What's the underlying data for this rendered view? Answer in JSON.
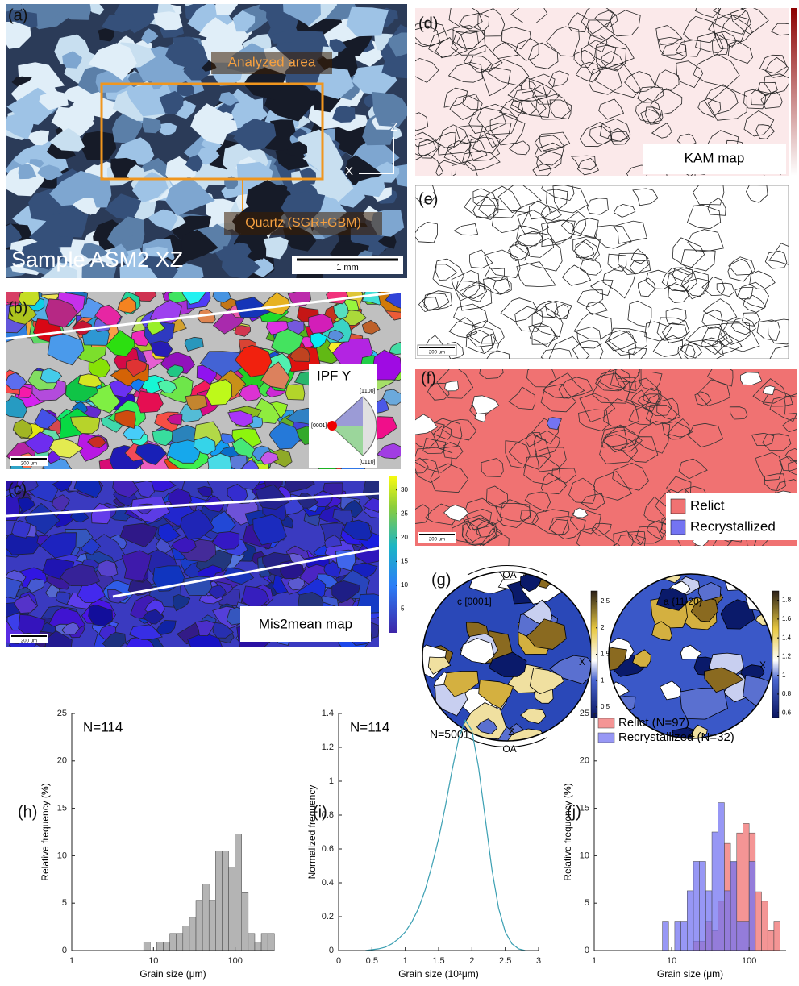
{
  "panels": {
    "a": {
      "label": "(a)",
      "analyzed_area": "Analyzed area",
      "mineral": "Quartz (SGR+GBM)",
      "sample": "Sample ASM2 XZ",
      "scale_bar": "1 mm",
      "axis_z": "Z",
      "axis_x": "X"
    },
    "b": {
      "label": "(b)",
      "legend_title": "IPF Y",
      "pole_top": "[1̄100]",
      "pole_left": "[0001]",
      "pole_bottom": "[01̄10]",
      "scale_bar": "200 μm"
    },
    "c": {
      "label": "(c)",
      "map_name": "Mis2mean map",
      "scale_bar": "200 μm",
      "colorbar": {
        "lim": [
          0,
          33
        ],
        "ticks": [
          5,
          10,
          15,
          20,
          25,
          30
        ]
      }
    },
    "d": {
      "label": "(d)",
      "map_name": "KAM map"
    },
    "e": {
      "label": "(e)",
      "scale_bar": "200 μm"
    },
    "f": {
      "label": "(f)",
      "scale_bar": "200 μm",
      "legend": [
        {
          "name": "Relict",
          "color": "#f07272"
        },
        {
          "name": "Recrystallized",
          "color": "#7474f2"
        }
      ]
    },
    "g": {
      "label": "(g)",
      "n": "N=5001",
      "c_axis": {
        "title": "c [0001]",
        "top": "OA",
        "bottom": "OA",
        "bottom_axis": "Z",
        "right": "X",
        "colorbar": {
          "lim": [
            0.3,
            2.7
          ],
          "ticks": [
            0.5,
            1,
            1.5,
            2,
            2.5
          ]
        }
      },
      "a_axis": {
        "title": "a {11-20}",
        "right": "X",
        "bottom": "Z",
        "colorbar": {
          "lim": [
            0.55,
            1.9
          ],
          "ticks": [
            0.6,
            0.8,
            1,
            1.2,
            1.4,
            1.6,
            1.8
          ]
        }
      }
    }
  },
  "chart_data": [
    {
      "type": "histogram",
      "panel": "(h)",
      "annotation": "N=114",
      "xlabel": "Grain size (μm)",
      "ylabel": "Relative frequency (%)",
      "xscale": "log",
      "xlim": [
        1,
        300
      ],
      "xticks": [
        1,
        10,
        100
      ],
      "ylim": [
        0,
        25
      ],
      "yticks": [
        0,
        5,
        10,
        15,
        20,
        25
      ],
      "color": "#b4b4b4",
      "bins": [
        7.59,
        9.12,
        10.96,
        13.18,
        15.85,
        19.05,
        22.91,
        27.54,
        33.11,
        39.81,
        47.86,
        57.54,
        69.18,
        83.18,
        100,
        120.2,
        144.5,
        173.8,
        208.9,
        251.2,
        302
      ],
      "values": [
        0.9,
        0,
        0.9,
        0.9,
        1.8,
        1.8,
        2.6,
        3.5,
        5.3,
        7.0,
        5.3,
        10.5,
        10.5,
        8.8,
        12.3,
        6.1,
        1.8,
        0.9,
        1.8,
        1.8
      ]
    },
    {
      "type": "line",
      "panel": "(i)",
      "annotation": "N=114",
      "xlabel": "Grain size (10ˣμm)",
      "ylabel": "Normalized frequency",
      "xlim": [
        0,
        3
      ],
      "xticks": [
        0,
        0.5,
        1,
        1.5,
        2,
        2.5,
        3
      ],
      "ylim": [
        0,
        1.4
      ],
      "yticks": [
        0,
        0.2,
        0.4,
        0.6,
        0.8,
        1,
        1.2,
        1.4
      ],
      "color": "#3a9fb2",
      "x": [
        0.4,
        0.5,
        0.6,
        0.7,
        0.8,
        0.9,
        1.0,
        1.1,
        1.2,
        1.3,
        1.4,
        1.5,
        1.6,
        1.7,
        1.8,
        1.9,
        2.0,
        2.1,
        2.2,
        2.3,
        2.4,
        2.5,
        2.6,
        2.7,
        2.8
      ],
      "values": [
        0,
        0.005,
        0.01,
        0.02,
        0.04,
        0.07,
        0.11,
        0.17,
        0.25,
        0.36,
        0.5,
        0.66,
        0.85,
        1.06,
        1.25,
        1.36,
        1.3,
        1.08,
        0.78,
        0.48,
        0.25,
        0.11,
        0.04,
        0.01,
        0
      ]
    },
    {
      "type": "histogram",
      "panel": "(j)",
      "xlabel": "Grain size (μm)",
      "ylabel": "Relative frequency (%)",
      "xscale": "log",
      "xlim": [
        1,
        300
      ],
      "xticks": [
        1,
        10,
        100
      ],
      "ylim": [
        0,
        25
      ],
      "yticks": [
        0,
        5,
        10,
        15,
        20,
        25
      ],
      "bins": [
        7.59,
        9.12,
        10.96,
        13.18,
        15.85,
        19.05,
        22.91,
        27.54,
        33.11,
        39.81,
        47.86,
        57.54,
        69.18,
        83.18,
        100,
        120.2,
        144.5,
        173.8,
        208.9,
        251.2,
        302
      ],
      "series": [
        {
          "name": "Relict (N=97)",
          "color": "#f07272",
          "values": [
            0,
            0,
            0,
            0,
            0,
            1.0,
            1.0,
            3.1,
            2.1,
            5.2,
            11.3,
            9.3,
            12.4,
            13.4,
            12.4,
            6.2,
            5.2,
            2.1,
            3.1,
            0
          ]
        },
        {
          "name": "Recrystallized (N=32)",
          "color": "#7474f2",
          "values": [
            3.1,
            0,
            3.1,
            3.1,
            6.3,
            9.4,
            9.4,
            6.3,
            12.5,
            15.6,
            6.3,
            9.4,
            3.1,
            3.1,
            9.4,
            0,
            0,
            0,
            0,
            0
          ]
        }
      ]
    }
  ]
}
